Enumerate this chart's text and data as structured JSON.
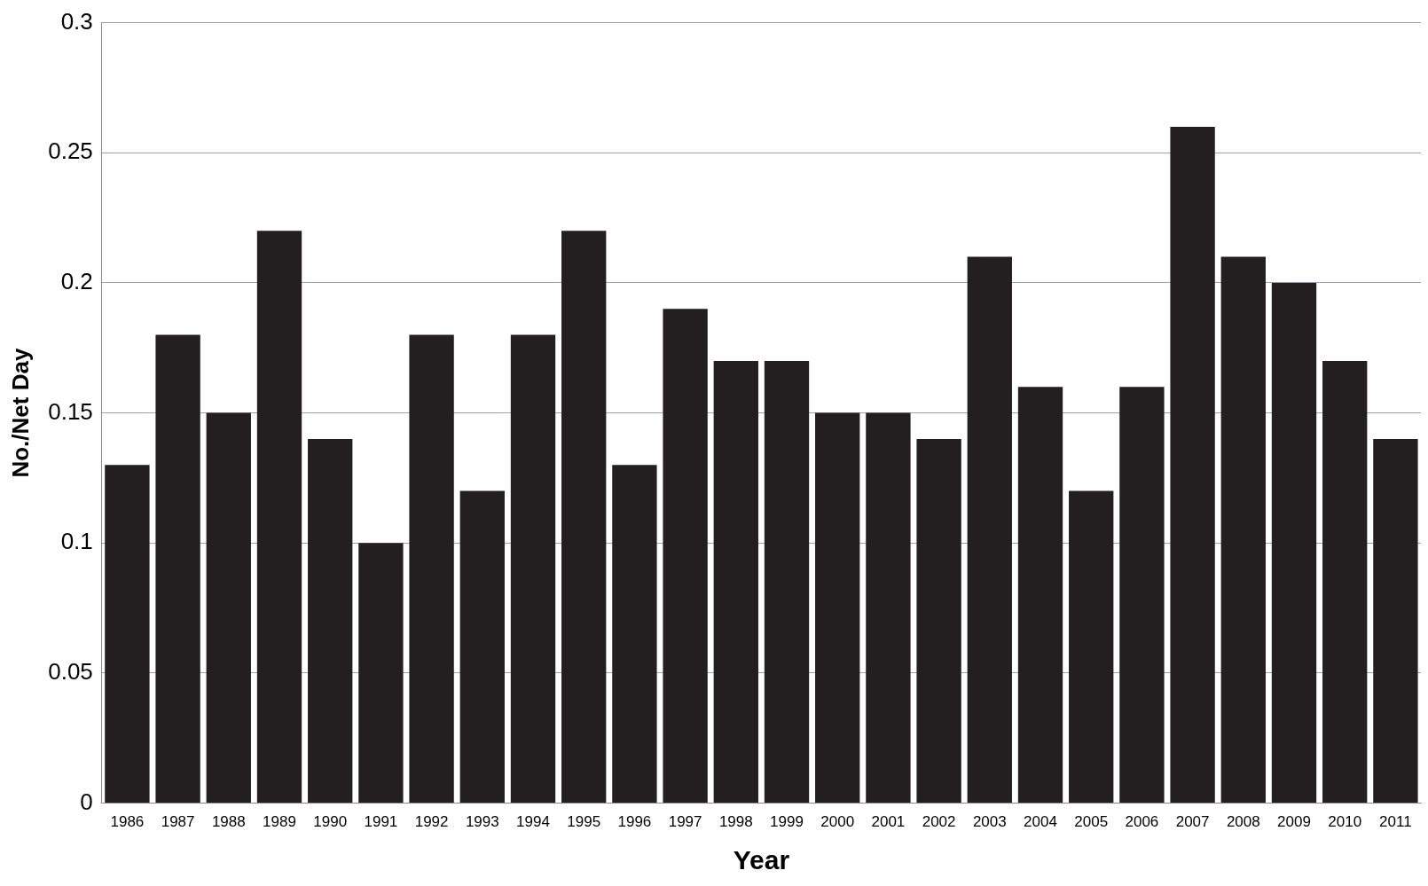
{
  "chart_data": {
    "type": "bar",
    "xlabel": "Year",
    "ylabel": "No./Net Day",
    "categories": [
      "1986",
      "1987",
      "1988",
      "1989",
      "1990",
      "1991",
      "1992",
      "1993",
      "1994",
      "1995",
      "1996",
      "1997",
      "1998",
      "1999",
      "2000",
      "2001",
      "2002",
      "2003",
      "2004",
      "2005",
      "2006",
      "2007",
      "2008",
      "2009",
      "2010",
      "2011"
    ],
    "values": [
      0.13,
      0.18,
      0.15,
      0.22,
      0.14,
      0.1,
      0.18,
      0.12,
      0.18,
      0.22,
      0.13,
      0.19,
      0.17,
      0.17,
      0.15,
      0.15,
      0.14,
      0.21,
      0.16,
      0.12,
      0.16,
      0.26,
      0.21,
      0.2,
      0.17,
      0.14
    ],
    "color": "#231f20",
    "ylim": [
      0,
      0.3
    ],
    "yticks": [
      0,
      0.05,
      0.1,
      0.15,
      0.2,
      0.25,
      0.3
    ],
    "grid": "y",
    "legend": false
  }
}
